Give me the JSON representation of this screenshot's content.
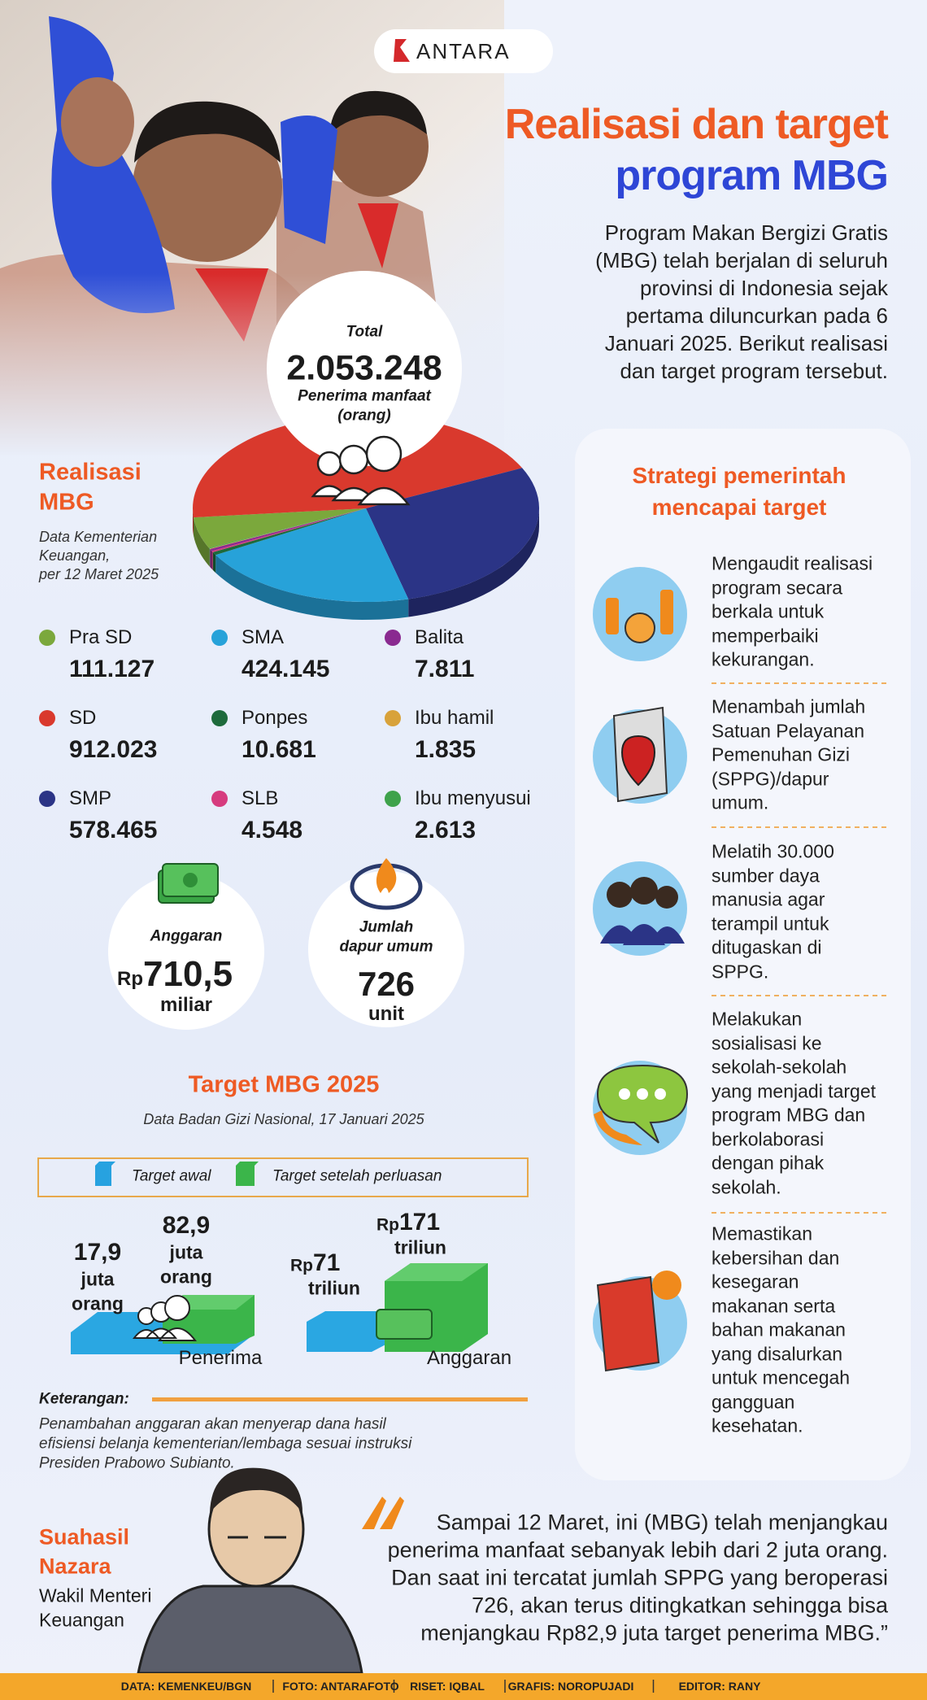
{
  "logo": "ANTARA",
  "header": {
    "title_line1": "Realisasi dan target",
    "title_line2": "program MBG",
    "intro": [
      "Program Makan Bergizi Gratis",
      "(MBG) telah berjalan di seluruh",
      "provinsi di Indonesia sejak",
      "pertama diluncurkan pada 6",
      "Januari 2025. Berikut realisasi",
      "dan target program tersebut."
    ]
  },
  "chart_data": {
    "type": "pie",
    "title": [
      "Realisasi",
      "MBG"
    ],
    "subtitle": [
      "Data Kementerian",
      "Keuangan,",
      "per 12 Maret 2025"
    ],
    "total": {
      "label": "Total",
      "value": "2.053.248",
      "unit": [
        "Penerima manfaat",
        "(orang)"
      ]
    },
    "categories": [
      "Pra SD",
      "SD",
      "SMP",
      "SMA",
      "Ponpes",
      "SLB",
      "Balita",
      "Ibu hamil",
      "Ibu menyusui"
    ],
    "values": [
      111127,
      912023,
      578465,
      424145,
      10681,
      4548,
      7811,
      1835,
      2613
    ],
    "value_labels": [
      "111.127",
      "912.023",
      "578.465",
      "424.145",
      "10.681",
      "4.548",
      "7.811",
      "1.835",
      "2.613"
    ],
    "colors": [
      "#7ba83c",
      "#d9392d",
      "#2b3486",
      "#27a2d9",
      "#1d6a3b",
      "#d63b7e",
      "#8a2a90",
      "#d8a23a",
      "#3ea24b"
    ]
  },
  "budget": {
    "label": "Anggaran",
    "prefix": "Rp",
    "value": "710,5",
    "unit": "miliar"
  },
  "kitchens": {
    "label": [
      "Jumlah",
      "dapur umum"
    ],
    "value": "726",
    "unit": "unit"
  },
  "target": {
    "title": "Target MBG 2025",
    "source": "Data Badan Gizi Nasional, 17 Januari 2025",
    "legend": [
      "Target awal",
      "Target setelah perluasan"
    ],
    "recipients": {
      "initial": [
        "17,9",
        "juta",
        "orang"
      ],
      "expanded": [
        "82,9",
        "juta",
        "orang"
      ],
      "label": "Penerima"
    },
    "budget": {
      "initial": {
        "prefix": "Rp",
        "value": "71",
        "unit": "triliun"
      },
      "expanded": {
        "prefix": "Rp",
        "value": "171",
        "unit": "triliun"
      },
      "label": "Anggaran"
    },
    "note_title": "Keterangan:",
    "note": [
      "Penambahan anggaran akan menyerap dana hasil",
      "efisiensi belanja kementerian/lembaga sesuai instruksi",
      "Presiden Prabowo Subianto."
    ]
  },
  "strategy": {
    "title": [
      "Strategi pemerintah",
      "mencapai target"
    ],
    "items": [
      [
        "Mengaudit realisasi",
        "program secara",
        "berkala untuk",
        "memperbaiki",
        "kekurangan."
      ],
      [
        "Menambah jumlah",
        "Satuan Pelayanan",
        "Pemenuhan Gizi",
        "(SPPG)/dapur",
        "umum."
      ],
      [
        "Melatih 30.000",
        "sumber daya",
        "manusia agar",
        "terampil untuk",
        "ditugaskan di",
        "SPPG."
      ],
      [
        "Melakukan",
        "sosialisasi ke",
        "sekolah-sekolah",
        "yang menjadi target",
        "program MBG dan",
        "berkolaborasi",
        "dengan pihak",
        "sekolah."
      ],
      [
        "Memastikan",
        "kebersihan dan",
        "kesegaran",
        "makanan serta",
        "bahan makanan",
        "yang disalurkan",
        "untuk mencegah",
        "gangguan",
        "kesehatan."
      ]
    ]
  },
  "quote": {
    "name": [
      "Suahasil",
      "Nazara"
    ],
    "role": [
      "Wakil Menteri",
      "Keuangan"
    ],
    "text": [
      "Sampai 12 Maret, ini (MBG) telah menjangkau",
      "penerima manfaat sebanyak lebih dari 2 juta orang.",
      "Dan saat ini tercatat jumlah SPPG yang beroperasi",
      "726, akan terus ditingkatkan sehingga bisa",
      "menjangkau Rp82,9 juta target penerima MBG.”"
    ]
  },
  "footer": [
    "DATA: KEMENKEU/BGN",
    "FOTO: ANTARAFOTO",
    "RISET: IQBAL",
    "GRAFIS: NOROPUJADI",
    "EDITOR: RANY"
  ]
}
